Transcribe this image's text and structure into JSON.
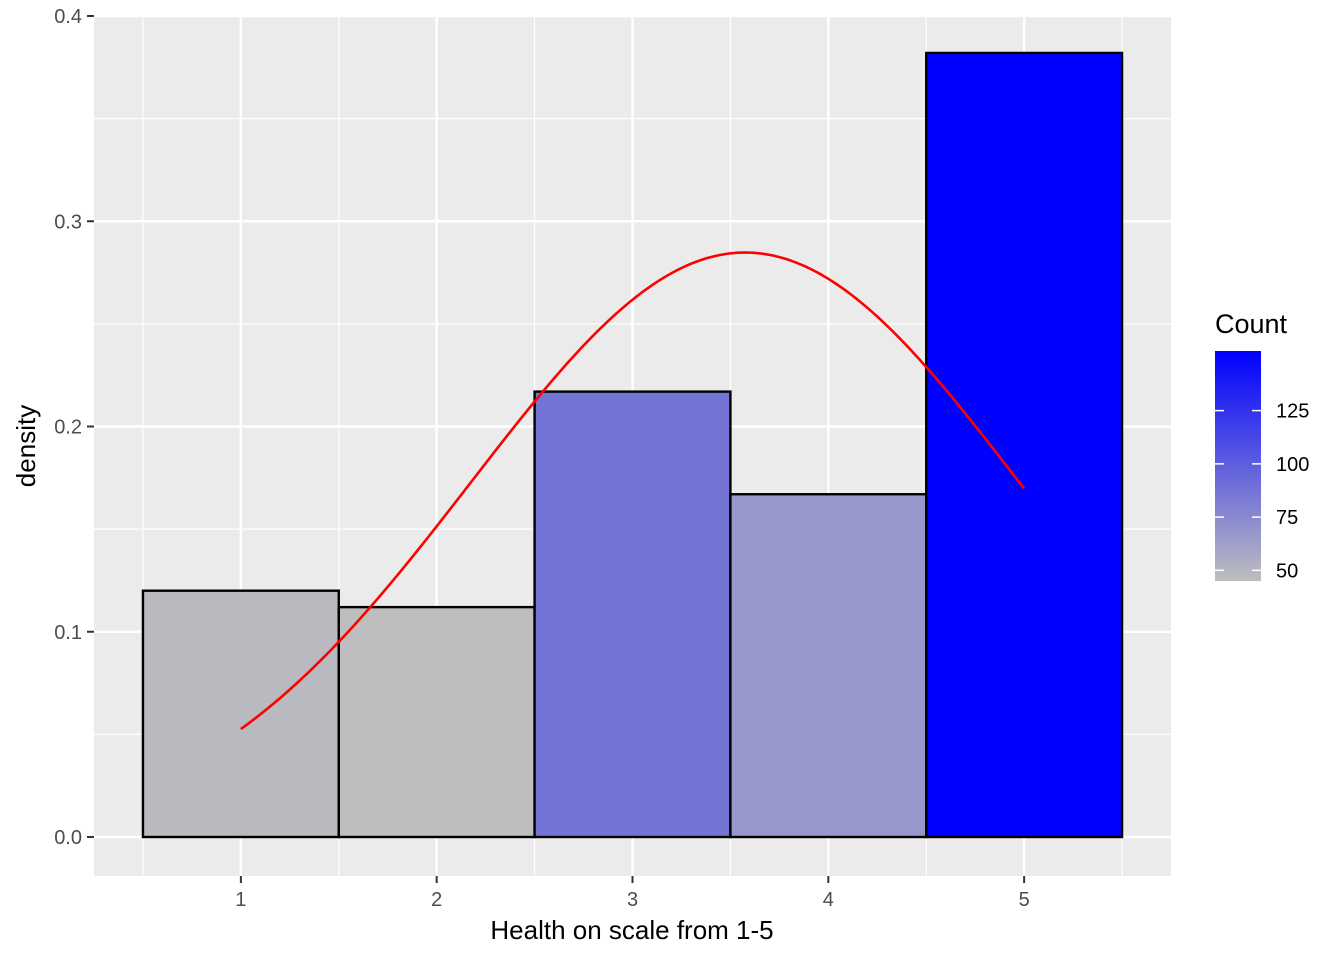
{
  "chart_data": {
    "type": "bar",
    "title": "",
    "xlabel": "Health on scale from 1-5",
    "ylabel": "density",
    "x": [
      1,
      2,
      3,
      4,
      5
    ],
    "x_tick_labels": [
      "1",
      "2",
      "3",
      "4",
      "5"
    ],
    "xlim": [
      0.25,
      5.75
    ],
    "values": [
      0.12,
      0.112,
      0.217,
      0.167,
      0.382
    ],
    "counts": [
      48,
      45,
      87,
      67,
      153
    ],
    "ylim": [
      -0.019,
      0.4
    ],
    "y_ticks": [
      0.0,
      0.1,
      0.2,
      0.3,
      0.4
    ],
    "y_tick_labels": [
      "0.0",
      "0.1",
      "0.2",
      "0.3",
      "0.4"
    ],
    "bar_border_color": "#000000",
    "grid": true,
    "panel_background": "#ebebeb",
    "grid_color": "#ffffff",
    "overlay": {
      "type": "line",
      "color": "#ff0000",
      "description": "normal density curve",
      "mean": 3.575,
      "sd": 1.401,
      "x_range": [
        1,
        5
      ]
    },
    "legend": {
      "title": "Count",
      "type": "colorbar",
      "position": "right",
      "range": [
        45,
        153
      ],
      "low_color": "#bebebe",
      "high_color": "#0000ff",
      "ticks": [
        50,
        75,
        100,
        125
      ],
      "tick_labels": [
        "50",
        "75",
        "100",
        "125"
      ]
    }
  }
}
